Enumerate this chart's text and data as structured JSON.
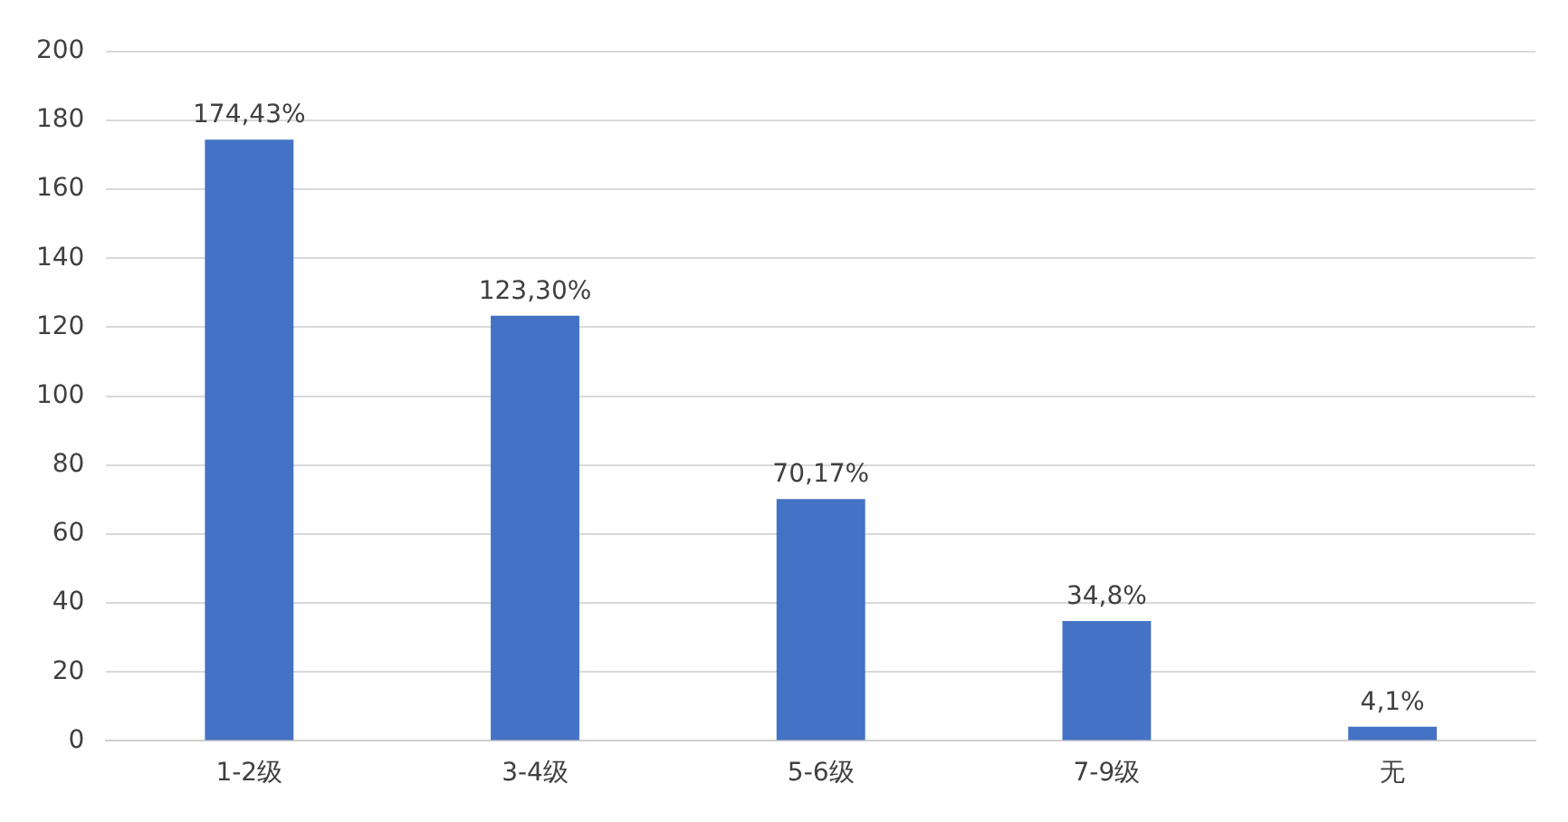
{
  "chart_data": {
    "type": "bar",
    "categories": [
      "1-2级",
      "3-4级",
      "5-6级",
      "7-9级",
      "无"
    ],
    "values": [
      174.43,
      123.3,
      70.17,
      34.8,
      4.1
    ],
    "value_labels": [
      "174,43%",
      "123,30%",
      "70,17%",
      "34,8%",
      "4,1%"
    ],
    "color": "#4472c4",
    "ylim": [
      0,
      200
    ],
    "yticks": [
      0,
      20,
      40,
      60,
      80,
      100,
      120,
      140,
      160,
      180,
      200
    ],
    "grid": "y",
    "legend": false
  }
}
